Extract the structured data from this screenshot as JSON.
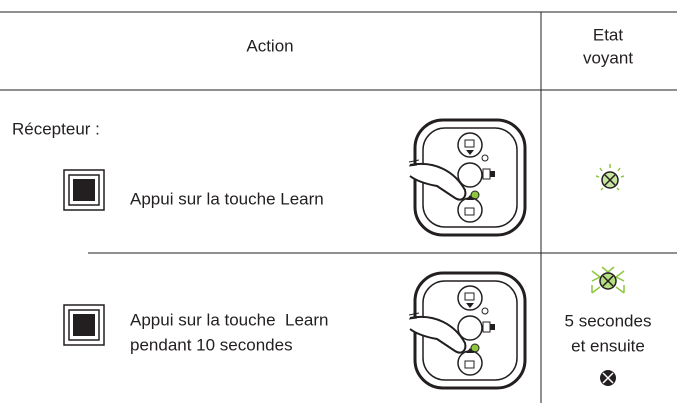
{
  "header": {
    "action": "Action",
    "state": [
      "Etat",
      "voyant"
    ]
  },
  "section_label": "Récepteur :",
  "rows": [
    {
      "text": [
        "Appui sur la touche Learn"
      ]
    },
    {
      "text": [
        "Appui sur la touche  Learn",
        "pendant 10 secondes"
      ],
      "state_text": [
        "5 secondes",
        "et ensuite"
      ]
    }
  ]
}
